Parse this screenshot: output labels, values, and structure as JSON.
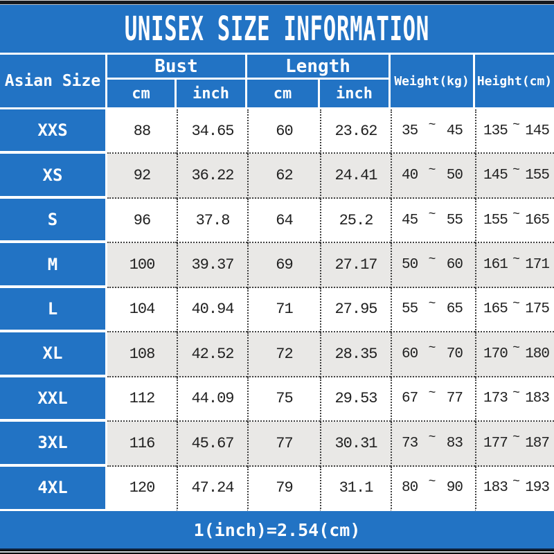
{
  "title": "UNISEX SIZE INFORMATION",
  "footer_note": "1(inch)=2.54(cm)",
  "colors": {
    "blue": "#2273c4",
    "alt_row": "#e9e8e6",
    "text": "#212121",
    "header_text": "#ffffff"
  },
  "table": {
    "corner_header": "Asian Size",
    "bust_header": "Bust",
    "length_header": "Length",
    "cm_label": "cm",
    "inch_label": "inch",
    "weight_header": "Weight(kg)",
    "height_header": "Height(cm)",
    "tilde": "~",
    "rows": [
      {
        "size": "XXS",
        "bust_cm": "88",
        "bust_inch": "34.65",
        "length_cm": "60",
        "length_inch": "23.62",
        "weight_min": "35",
        "weight_max": "45",
        "height_min": "135",
        "height_max": "145"
      },
      {
        "size": "XS",
        "bust_cm": "92",
        "bust_inch": "36.22",
        "length_cm": "62",
        "length_inch": "24.41",
        "weight_min": "40",
        "weight_max": "50",
        "height_min": "145",
        "height_max": "155"
      },
      {
        "size": "S",
        "bust_cm": "96",
        "bust_inch": "37.8",
        "length_cm": "64",
        "length_inch": "25.2",
        "weight_min": "45",
        "weight_max": "55",
        "height_min": "155",
        "height_max": "165"
      },
      {
        "size": "M",
        "bust_cm": "100",
        "bust_inch": "39.37",
        "length_cm": "69",
        "length_inch": "27.17",
        "weight_min": "50",
        "weight_max": "60",
        "height_min": "161",
        "height_max": "171"
      },
      {
        "size": "L",
        "bust_cm": "104",
        "bust_inch": "40.94",
        "length_cm": "71",
        "length_inch": "27.95",
        "weight_min": "55",
        "weight_max": "65",
        "height_min": "165",
        "height_max": "175"
      },
      {
        "size": "XL",
        "bust_cm": "108",
        "bust_inch": "42.52",
        "length_cm": "72",
        "length_inch": "28.35",
        "weight_min": "60",
        "weight_max": "70",
        "height_min": "170",
        "height_max": "180"
      },
      {
        "size": "XXL",
        "bust_cm": "112",
        "bust_inch": "44.09",
        "length_cm": "75",
        "length_inch": "29.53",
        "weight_min": "67",
        "weight_max": "77",
        "height_min": "173",
        "height_max": "183"
      },
      {
        "size": "3XL",
        "bust_cm": "116",
        "bust_inch": "45.67",
        "length_cm": "77",
        "length_inch": "30.31",
        "weight_min": "73",
        "weight_max": "83",
        "height_min": "177",
        "height_max": "187"
      },
      {
        "size": "4XL",
        "bust_cm": "120",
        "bust_inch": "47.24",
        "length_cm": "79",
        "length_inch": "31.1",
        "weight_min": "80",
        "weight_max": "90",
        "height_min": "183",
        "height_max": "193"
      }
    ]
  },
  "chart_data": {
    "type": "table",
    "title": "UNISEX SIZE INFORMATION",
    "columns": [
      "Asian Size",
      "Bust cm",
      "Bust inch",
      "Length cm",
      "Length inch",
      "Weight(kg)",
      "Height(cm)"
    ],
    "rows": [
      [
        "XXS",
        88,
        34.65,
        60,
        23.62,
        "35 ~ 45",
        "135 ~ 145"
      ],
      [
        "XS",
        92,
        36.22,
        62,
        24.41,
        "40 ~ 50",
        "145 ~ 155"
      ],
      [
        "S",
        96,
        37.8,
        64,
        25.2,
        "45 ~ 55",
        "155 ~ 165"
      ],
      [
        "M",
        100,
        39.37,
        69,
        27.17,
        "50 ~ 60",
        "161 ~ 171"
      ],
      [
        "L",
        104,
        40.94,
        71,
        27.95,
        "55 ~ 65",
        "165 ~ 175"
      ],
      [
        "XL",
        108,
        42.52,
        72,
        28.35,
        "60 ~ 70",
        "170 ~ 180"
      ],
      [
        "XXL",
        112,
        44.09,
        75,
        29.53,
        "67 ~ 77",
        "173 ~ 183"
      ],
      [
        "3XL",
        116,
        45.67,
        77,
        30.31,
        "73 ~ 83",
        "177 ~ 187"
      ],
      [
        "4XL",
        120,
        47.24,
        79,
        31.1,
        "80 ~ 90",
        "183 ~ 193"
      ]
    ],
    "note": "1(inch)=2.54(cm)"
  }
}
